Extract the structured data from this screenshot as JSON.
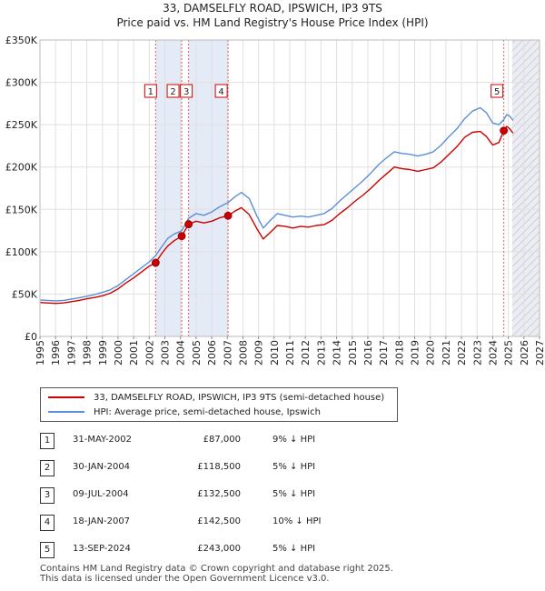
{
  "chart_data": {
    "type": "line",
    "title": "33, DAMSELFLY ROAD, IPSWICH, IP3 9TS",
    "subtitle": "Price paid vs. HM Land Registry's House Price Index (HPI)",
    "xlim": [
      1995,
      2027
    ],
    "ylim": [
      0,
      350000
    ],
    "x_ticks": [
      1995,
      1996,
      1997,
      1998,
      1999,
      2000,
      2001,
      2002,
      2003,
      2004,
      2005,
      2006,
      2007,
      2008,
      2009,
      2010,
      2011,
      2012,
      2013,
      2014,
      2015,
      2016,
      2017,
      2018,
      2019,
      2020,
      2021,
      2022,
      2023,
      2024,
      2025,
      2026,
      2027
    ],
    "y_ticks": [
      {
        "value": 0,
        "label": "£0"
      },
      {
        "value": 50000,
        "label": "£50K"
      },
      {
        "value": 100000,
        "label": "£100K"
      },
      {
        "value": 150000,
        "label": "£150K"
      },
      {
        "value": 200000,
        "label": "£200K"
      },
      {
        "value": 250000,
        "label": "£250K"
      },
      {
        "value": 300000,
        "label": "£300K"
      },
      {
        "value": 350000,
        "label": "£350K"
      }
    ],
    "shaded_spans": [
      [
        2002.41,
        2004.08
      ],
      [
        2004.52,
        2007.05
      ]
    ],
    "forecast_start": 2025.25,
    "series": [
      {
        "name": "33, DAMSELFLY ROAD, IPSWICH, IP3 9TS (semi-detached house)",
        "color": "#cc0000",
        "points": [
          [
            1995.0,
            40000
          ],
          [
            1995.5,
            39500
          ],
          [
            1996.0,
            39000
          ],
          [
            1996.5,
            39500
          ],
          [
            1997.0,
            41000
          ],
          [
            1997.5,
            42500
          ],
          [
            1998.0,
            44500
          ],
          [
            1998.5,
            46000
          ],
          [
            1999.0,
            48000
          ],
          [
            1999.5,
            51000
          ],
          [
            2000.0,
            56000
          ],
          [
            2000.5,
            63000
          ],
          [
            2001.0,
            69000
          ],
          [
            2001.5,
            76000
          ],
          [
            2002.0,
            83000
          ],
          [
            2002.41,
            87000
          ],
          [
            2002.8,
            98000
          ],
          [
            2003.2,
            107000
          ],
          [
            2003.6,
            113000
          ],
          [
            2004.08,
            118500
          ],
          [
            2004.52,
            132500
          ],
          [
            2005.0,
            136000
          ],
          [
            2005.5,
            134000
          ],
          [
            2006.0,
            136000
          ],
          [
            2006.5,
            140000
          ],
          [
            2007.05,
            142500
          ],
          [
            2007.5,
            148000
          ],
          [
            2007.9,
            152000
          ],
          [
            2008.4,
            144000
          ],
          [
            2008.9,
            127000
          ],
          [
            2009.3,
            115000
          ],
          [
            2009.7,
            122000
          ],
          [
            2010.2,
            131000
          ],
          [
            2010.7,
            130000
          ],
          [
            2011.2,
            128000
          ],
          [
            2011.7,
            130000
          ],
          [
            2012.2,
            129000
          ],
          [
            2012.7,
            131000
          ],
          [
            2013.2,
            132000
          ],
          [
            2013.7,
            137000
          ],
          [
            2014.2,
            145000
          ],
          [
            2014.7,
            152000
          ],
          [
            2015.2,
            160000
          ],
          [
            2015.7,
            167000
          ],
          [
            2016.2,
            175000
          ],
          [
            2016.7,
            184000
          ],
          [
            2017.2,
            192000
          ],
          [
            2017.7,
            200000
          ],
          [
            2018.2,
            198000
          ],
          [
            2018.7,
            197000
          ],
          [
            2019.2,
            195000
          ],
          [
            2019.7,
            197000
          ],
          [
            2020.2,
            199000
          ],
          [
            2020.7,
            206000
          ],
          [
            2021.2,
            215000
          ],
          [
            2021.7,
            224000
          ],
          [
            2022.2,
            235000
          ],
          [
            2022.7,
            241000
          ],
          [
            2023.2,
            242000
          ],
          [
            2023.6,
            236000
          ],
          [
            2024.0,
            226000
          ],
          [
            2024.4,
            229000
          ],
          [
            2024.71,
            243000
          ],
          [
            2024.9,
            248000
          ],
          [
            2025.1,
            245000
          ],
          [
            2025.3,
            240000
          ]
        ]
      },
      {
        "name": "HPI: Average price, semi-detached house, Ipswich",
        "color": "#5b8fd6",
        "points": [
          [
            1995.0,
            43000
          ],
          [
            1995.5,
            42500
          ],
          [
            1996.0,
            42000
          ],
          [
            1996.5,
            42500
          ],
          [
            1997.0,
            44000
          ],
          [
            1997.5,
            45500
          ],
          [
            1998.0,
            47500
          ],
          [
            1998.5,
            49500
          ],
          [
            1999.0,
            52000
          ],
          [
            1999.5,
            55000
          ],
          [
            2000.0,
            60000
          ],
          [
            2000.5,
            67000
          ],
          [
            2001.0,
            74000
          ],
          [
            2001.5,
            81000
          ],
          [
            2002.0,
            88000
          ],
          [
            2002.41,
            95600
          ],
          [
            2002.8,
            106000
          ],
          [
            2003.2,
            116000
          ],
          [
            2003.6,
            121000
          ],
          [
            2004.08,
            124700
          ],
          [
            2004.52,
            139500
          ],
          [
            2005.0,
            145000
          ],
          [
            2005.5,
            143000
          ],
          [
            2006.0,
            147000
          ],
          [
            2006.5,
            153000
          ],
          [
            2007.05,
            158000
          ],
          [
            2007.5,
            165000
          ],
          [
            2007.9,
            170000
          ],
          [
            2008.4,
            163000
          ],
          [
            2008.9,
            142000
          ],
          [
            2009.3,
            128000
          ],
          [
            2009.7,
            136000
          ],
          [
            2010.2,
            145000
          ],
          [
            2010.7,
            143000
          ],
          [
            2011.2,
            141000
          ],
          [
            2011.7,
            142000
          ],
          [
            2012.2,
            141000
          ],
          [
            2012.7,
            143000
          ],
          [
            2013.2,
            145000
          ],
          [
            2013.7,
            151000
          ],
          [
            2014.2,
            160000
          ],
          [
            2014.7,
            168000
          ],
          [
            2015.2,
            176000
          ],
          [
            2015.7,
            184000
          ],
          [
            2016.2,
            193000
          ],
          [
            2016.7,
            203000
          ],
          [
            2017.2,
            211000
          ],
          [
            2017.7,
            218000
          ],
          [
            2018.2,
            216000
          ],
          [
            2018.7,
            215000
          ],
          [
            2019.2,
            213000
          ],
          [
            2019.7,
            215000
          ],
          [
            2020.2,
            218000
          ],
          [
            2020.7,
            226000
          ],
          [
            2021.2,
            236000
          ],
          [
            2021.7,
            245000
          ],
          [
            2022.2,
            257000
          ],
          [
            2022.7,
            266000
          ],
          [
            2023.2,
            270000
          ],
          [
            2023.6,
            264000
          ],
          [
            2024.0,
            252000
          ],
          [
            2024.4,
            250000
          ],
          [
            2024.71,
            256000
          ],
          [
            2024.9,
            262000
          ],
          [
            2025.1,
            260000
          ],
          [
            2025.3,
            255000
          ]
        ]
      }
    ],
    "markers": [
      {
        "label": "1",
        "x": 2002.41,
        "y": 87000
      },
      {
        "label": "2",
        "x": 2004.08,
        "y": 118500
      },
      {
        "label": "3",
        "x": 2004.52,
        "y": 132500
      },
      {
        "label": "4",
        "x": 2007.05,
        "y": 142500
      },
      {
        "label": "5",
        "x": 2024.71,
        "y": 243000
      }
    ]
  },
  "legend": {
    "property_label": "33, DAMSELFLY ROAD, IPSWICH, IP3 9TS (semi-detached house)",
    "hpi_label": "HPI: Average price, semi-detached house, Ipswich",
    "property_color": "#cc0000",
    "hpi_color": "#5b8fd6"
  },
  "sales": [
    {
      "num": "1",
      "date": "31-MAY-2002",
      "price": "£87,000",
      "hpi": "9% ↓ HPI"
    },
    {
      "num": "2",
      "date": "30-JAN-2004",
      "price": "£118,500",
      "hpi": "5% ↓ HPI"
    },
    {
      "num": "3",
      "date": "09-JUL-2004",
      "price": "£132,500",
      "hpi": "5% ↓ HPI"
    },
    {
      "num": "4",
      "date": "18-JAN-2007",
      "price": "£142,500",
      "hpi": "10% ↓ HPI"
    },
    {
      "num": "5",
      "date": "13-SEP-2024",
      "price": "£243,000",
      "hpi": "5% ↓ HPI"
    }
  ],
  "footer": {
    "line1": "Contains HM Land Registry data © Crown copyright and database right 2025.",
    "line2": "This data is licensed under the Open Government Licence v3.0."
  }
}
